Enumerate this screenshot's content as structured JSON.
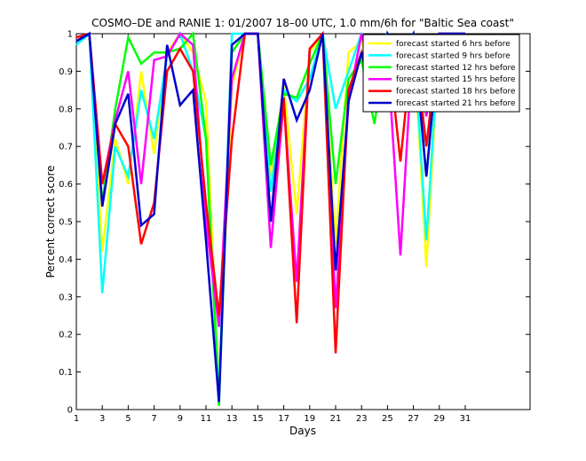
{
  "chart_data": {
    "type": "line",
    "title": "COSMO–DE and RANIE 1: 01/2007 18–00 UTC, 1.0 mm/6h for \"Baltic Sea coast\"",
    "xlabel": "Days",
    "ylabel": "Percent correct score",
    "xlim": [
      1,
      31
    ],
    "ylim": [
      0,
      1
    ],
    "grid": false,
    "legend_position": "top-right",
    "x_ticks": [
      "1",
      "3",
      "5",
      "7",
      "9",
      "11",
      "13",
      "15",
      "17",
      "19",
      "21",
      "23",
      "25",
      "27",
      "29",
      "31"
    ],
    "y_ticks": [
      "0",
      "0.1",
      "0.2",
      "0.3",
      "0.4",
      "0.5",
      "0.6",
      "0.7",
      "0.8",
      "0.9",
      "1"
    ],
    "x": [
      1,
      2,
      3,
      4,
      5,
      6,
      7,
      8,
      9,
      10,
      11,
      12,
      13,
      14,
      15,
      16,
      17,
      18,
      19,
      20,
      21,
      22,
      23,
      24,
      25,
      26,
      27,
      28,
      29,
      30,
      31
    ],
    "series": [
      {
        "name": "forecast started 6 hrs before",
        "color": "#ffff00",
        "values": [
          0.98,
          1.0,
          0.42,
          0.72,
          0.6,
          0.9,
          0.68,
          0.95,
          1.0,
          0.95,
          0.82,
          0.06,
          0.86,
          1.0,
          1.0,
          0.62,
          0.86,
          0.52,
          0.95,
          1.0,
          0.44,
          0.95,
          0.98,
          0.86,
          0.98,
          0.9,
          1.0,
          0.38,
          1.0,
          1.0,
          1.0
        ]
      },
      {
        "name": "forecast started 9 hrs before",
        "color": "#00ffff",
        "values": [
          0.97,
          1.0,
          0.31,
          0.7,
          0.62,
          0.85,
          0.72,
          0.94,
          1.0,
          0.9,
          0.72,
          0.04,
          1.0,
          1.0,
          1.0,
          0.58,
          0.85,
          0.82,
          0.88,
          1.0,
          0.8,
          0.9,
          1.0,
          0.97,
          1.0,
          0.88,
          1.0,
          0.45,
          1.0,
          1.0,
          1.0
        ]
      },
      {
        "name": "forecast started 12 hrs before",
        "color": "#00ff00",
        "values": [
          0.98,
          1.0,
          0.55,
          0.8,
          0.99,
          0.92,
          0.95,
          0.95,
          0.96,
          1.0,
          0.72,
          0.01,
          0.95,
          1.0,
          1.0,
          0.65,
          0.84,
          0.83,
          0.92,
          1.0,
          0.6,
          0.88,
          0.93,
          0.76,
          1.0,
          0.93,
          1.0,
          0.62,
          1.0,
          1.0,
          1.0
        ]
      },
      {
        "name": "forecast started 15 hrs before",
        "color": "#ff00ff",
        "values": [
          0.99,
          1.0,
          0.6,
          0.77,
          0.9,
          0.6,
          0.93,
          0.94,
          1.0,
          0.97,
          0.5,
          0.22,
          0.88,
          1.0,
          1.0,
          0.43,
          0.82,
          0.34,
          0.96,
          1.0,
          0.27,
          0.82,
          1.0,
          0.85,
          0.95,
          0.41,
          1.0,
          0.78,
          1.0,
          1.0,
          1.0
        ]
      },
      {
        "name": "forecast started 18 hrs before",
        "color": "#ff0000",
        "values": [
          0.99,
          1.0,
          0.6,
          0.76,
          0.7,
          0.44,
          0.55,
          0.9,
          0.96,
          0.9,
          0.55,
          0.25,
          0.72,
          1.0,
          1.0,
          0.5,
          0.83,
          0.23,
          0.96,
          1.0,
          0.15,
          0.85,
          0.95,
          0.8,
          0.98,
          0.66,
          1.0,
          0.7,
          1.0,
          1.0,
          1.0
        ]
      },
      {
        "name": "forecast started 21 hrs before",
        "color": "#0000cd",
        "values": [
          0.98,
          1.0,
          0.54,
          0.76,
          0.84,
          0.49,
          0.52,
          0.97,
          0.81,
          0.85,
          0.45,
          0.02,
          0.97,
          1.0,
          1.0,
          0.5,
          0.88,
          0.77,
          0.85,
          1.0,
          0.37,
          0.82,
          0.95,
          0.81,
          1.0,
          0.94,
          1.0,
          0.62,
          1.0,
          1.0,
          1.0
        ]
      }
    ]
  }
}
